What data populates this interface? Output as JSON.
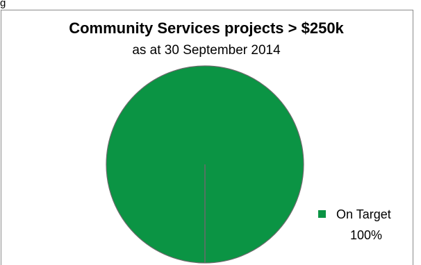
{
  "corner_label": "g",
  "chart_data": {
    "type": "pie",
    "title": "Community Services projects > $250k",
    "subtitle": "as at 30 September 2014",
    "slices": [
      {
        "label": "On Target",
        "value": 100,
        "display": "100%",
        "color": "#0b9444"
      }
    ],
    "legend_placement": "bottom-right"
  }
}
